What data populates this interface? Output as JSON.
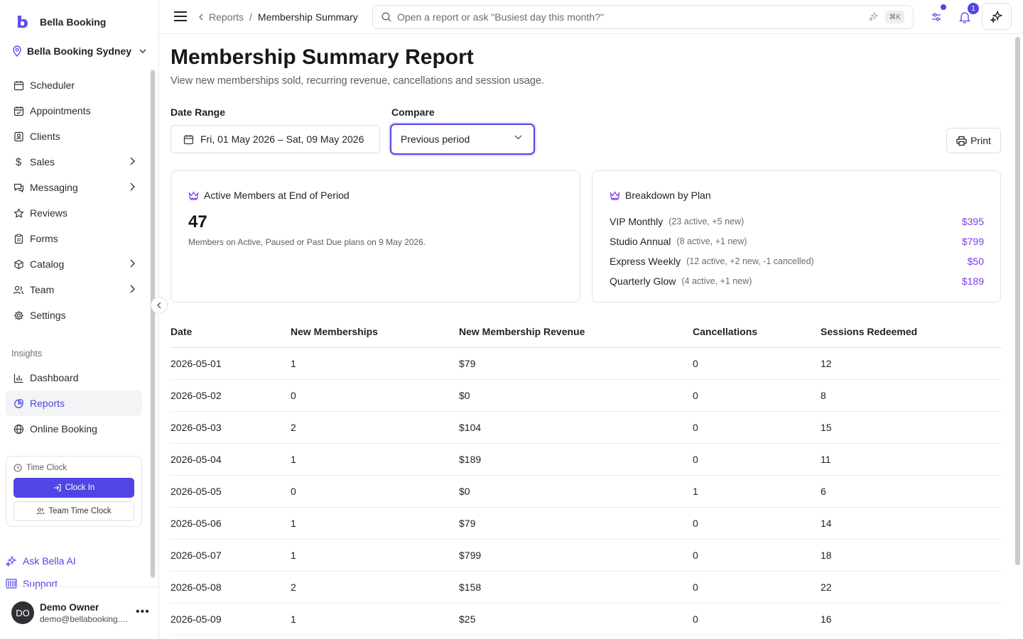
{
  "sidebar": {
    "brand": "Bella Booking",
    "location": "Bella Booking Sydney",
    "nav": [
      {
        "label": "Scheduler",
        "icon": "calendar-icon",
        "arrow": false
      },
      {
        "label": "Appointments",
        "icon": "calendar-check-icon",
        "arrow": false
      },
      {
        "label": "Clients",
        "icon": "contact-icon",
        "arrow": false
      },
      {
        "label": "Sales",
        "icon": "dollar-icon",
        "arrow": true
      },
      {
        "label": "Messaging",
        "icon": "chat-icon",
        "arrow": true
      },
      {
        "label": "Reviews",
        "icon": "star-icon",
        "arrow": false
      },
      {
        "label": "Forms",
        "icon": "clipboard-icon",
        "arrow": false
      },
      {
        "label": "Catalog",
        "icon": "box-icon",
        "arrow": true
      },
      {
        "label": "Team",
        "icon": "users-icon",
        "arrow": true
      },
      {
        "label": "Settings",
        "icon": "gear-icon",
        "arrow": false
      }
    ],
    "insights_label": "Insights",
    "insights": [
      {
        "label": "Dashboard",
        "icon": "bar-chart-icon"
      },
      {
        "label": "Reports",
        "icon": "pie-chart-icon"
      },
      {
        "label": "Online Booking",
        "icon": "globe-icon"
      }
    ],
    "time_clock": {
      "title": "Time Clock",
      "clock_in": "Clock In",
      "team": "Team Time Clock"
    },
    "ask_ai": "Ask Bella AI",
    "support": "Support",
    "user": {
      "initials": "DO",
      "name": "Demo Owner",
      "email": "demo@bellabooking.com"
    }
  },
  "topbar": {
    "breadcrumb_parent": "Reports",
    "breadcrumb_sep": "/",
    "breadcrumb_current": "Membership Summary",
    "search_placeholder": "Open a report or ask \"Busiest day this month?\"",
    "shortcut": "⌘K",
    "notification_count": "1"
  },
  "page": {
    "title": "Membership Summary Report",
    "subtitle": "View new memberships sold, recurring revenue, cancellations and session usage.",
    "date_range_label": "Date Range",
    "date_range_value": "Fri, 01 May 2026 – Sat, 09 May 2026",
    "compare_label": "Compare",
    "compare_value": "Previous period",
    "print_label": "Print"
  },
  "active_card": {
    "title": "Active Members at End of Period",
    "value": "47",
    "note": "Members on Active, Paused or Past Due plans on 9 May 2026."
  },
  "breakdown_card": {
    "title": "Breakdown by Plan",
    "plans": [
      {
        "name": "VIP Monthly",
        "detail": "(23 active, +5 new)",
        "price": "$395"
      },
      {
        "name": "Studio Annual",
        "detail": "(8 active, +1 new)",
        "price": "$799"
      },
      {
        "name": "Express Weekly",
        "detail": "(12 active, +2 new, -1 cancelled)",
        "price": "$50"
      },
      {
        "name": "Quarterly Glow",
        "detail": "(4 active, +1 new)",
        "price": "$189"
      }
    ]
  },
  "table": {
    "headers": [
      "Date",
      "New Memberships",
      "New Membership Revenue",
      "Cancellations",
      "Sessions Redeemed"
    ],
    "rows": [
      [
        "2026-05-01",
        "1",
        "$79",
        "0",
        "12"
      ],
      [
        "2026-05-02",
        "0",
        "$0",
        "0",
        "8"
      ],
      [
        "2026-05-03",
        "2",
        "$104",
        "0",
        "15"
      ],
      [
        "2026-05-04",
        "1",
        "$189",
        "0",
        "11"
      ],
      [
        "2026-05-05",
        "0",
        "$0",
        "1",
        "6"
      ],
      [
        "2026-05-06",
        "1",
        "$79",
        "0",
        "14"
      ],
      [
        "2026-05-07",
        "1",
        "$799",
        "0",
        "18"
      ],
      [
        "2026-05-08",
        "2",
        "$158",
        "0",
        "22"
      ],
      [
        "2026-05-09",
        "1",
        "$25",
        "0",
        "16"
      ]
    ]
  },
  "colors": {
    "accent": "#4f46e5",
    "price": "#7c3aed"
  }
}
